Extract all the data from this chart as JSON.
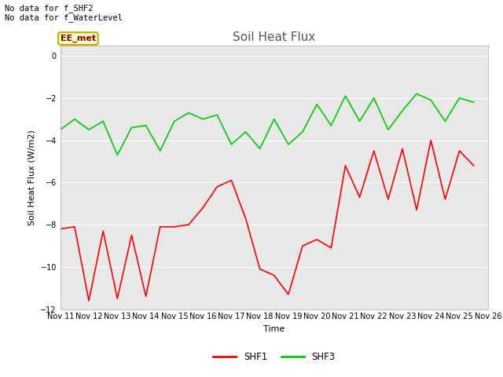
{
  "title": "Soil Heat Flux",
  "ylabel": "Soil Heat Flux (W/m2)",
  "xlabel": "Time",
  "ylim": [
    -12,
    0.5
  ],
  "yticks": [
    0,
    -2,
    -4,
    -6,
    -8,
    -10,
    -12
  ],
  "annotation_text": "No data for f_SHF2\nNo data for f_WaterLevel",
  "ee_met_label": "EE_met",
  "x_tick_labels": [
    "Nov 11",
    "Nov 12",
    "Nov 13",
    "Nov 14",
    "Nov 15",
    "Nov 16",
    "Nov 17",
    "Nov 18",
    "Nov 19",
    "Nov 20",
    "Nov 21",
    "Nov 22",
    "Nov 23",
    "Nov 24",
    "Nov 25",
    "Nov 26"
  ],
  "fig_bg_color": "#ffffff",
  "plot_bg_color": "#e8e8e8",
  "shf1_color": "#ff0000",
  "shf3_color": "#00cc00",
  "shf1_x": [
    11,
    11.5,
    12,
    12.5,
    13,
    13.5,
    14,
    14.5,
    15,
    15.5,
    16,
    16.5,
    17,
    17.5,
    18,
    18.5,
    19,
    19.5,
    20,
    20.5,
    21,
    21.5,
    22,
    22.5,
    23,
    23.5,
    24,
    24.5,
    25,
    25.5
  ],
  "shf1_y": [
    -8.2,
    -8.1,
    -11.6,
    -8.3,
    -11.5,
    -8.5,
    -11.4,
    -8.1,
    -8.1,
    -8.0,
    -7.2,
    -6.2,
    -5.9,
    -7.7,
    -10.1,
    -10.4,
    -11.3,
    -9.0,
    -8.7,
    -9.1,
    -5.2,
    -6.7,
    -4.5,
    -6.8,
    -4.4,
    -7.3,
    -4.0,
    -6.8,
    -4.5,
    -5.2
  ],
  "shf3_x": [
    11,
    11.5,
    12,
    12.5,
    13,
    13.5,
    14,
    14.5,
    15,
    15.5,
    16,
    16.5,
    17,
    17.5,
    18,
    18.5,
    19,
    19.5,
    20,
    20.5,
    21,
    21.5,
    22,
    22.5,
    23,
    23.5,
    24,
    24.5,
    25,
    25.5
  ],
  "shf3_y": [
    -3.5,
    -3.0,
    -3.5,
    -3.1,
    -4.7,
    -3.4,
    -3.3,
    -4.5,
    -3.1,
    -2.7,
    -3.0,
    -2.8,
    -4.2,
    -3.6,
    -4.4,
    -3.0,
    -4.2,
    -3.6,
    -2.3,
    -3.3,
    -1.9,
    -3.1,
    -2.0,
    -3.5,
    -2.6,
    -1.8,
    -2.1,
    -3.1,
    -2.0,
    -2.2
  ],
  "grid_color": "#ffffff",
  "tick_label_fontsize": 7,
  "title_fontsize": 11,
  "annotation_fontsize": 7.5,
  "ee_met_fontsize": 8
}
